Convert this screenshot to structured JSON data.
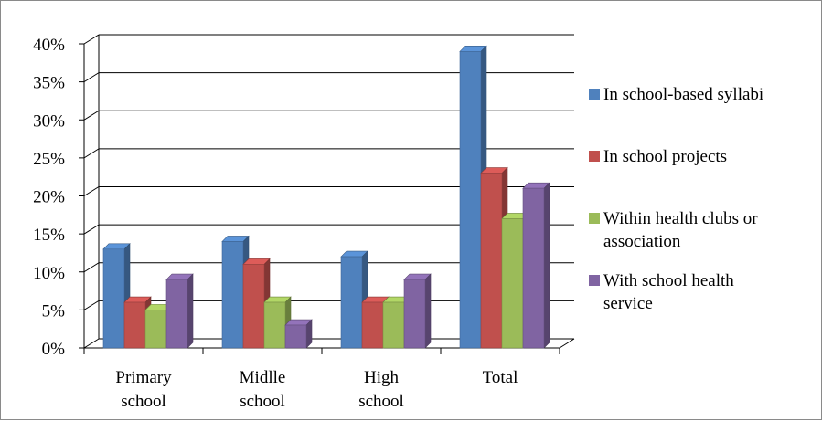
{
  "chart_data": {
    "type": "bar",
    "title": "",
    "xlabel": "",
    "ylabel": "",
    "categories": [
      [
        "Primary",
        "school"
      ],
      [
        "Midlle",
        "school"
      ],
      [
        "High",
        "school"
      ],
      [
        "Total"
      ]
    ],
    "y_ticks": [
      "0%",
      "5%",
      "10%",
      "15%",
      "20%",
      "25%",
      "30%",
      "35%",
      "40%"
    ],
    "ylim": [
      0,
      40
    ],
    "grid": true,
    "legend_position": "right",
    "series": [
      {
        "name": [
          "In school-based syllabi"
        ],
        "values": [
          13,
          14,
          12,
          39
        ],
        "color": "#4F81BD"
      },
      {
        "name": [
          "In school projects"
        ],
        "values": [
          6,
          11,
          6,
          23
        ],
        "color": "#C0504D"
      },
      {
        "name": [
          "Within health clubs or",
          "association"
        ],
        "values": [
          5,
          6,
          6,
          17
        ],
        "color": "#9BBB59"
      },
      {
        "name": [
          "With school health",
          "service"
        ],
        "values": [
          9,
          3,
          9,
          21
        ],
        "color": "#8064A2"
      }
    ]
  }
}
